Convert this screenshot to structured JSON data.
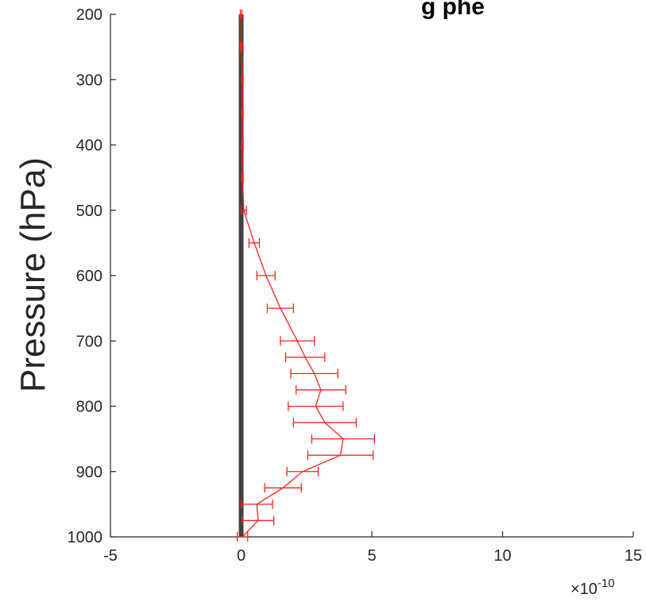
{
  "chart_data": {
    "type": "line",
    "title": "g      phe",
    "ylabel": "Pressure (hPa)",
    "xlabel": "",
    "x_multiplier_label": "×10",
    "x_multiplier_exponent": "-10",
    "xlim": [
      -5,
      15
    ],
    "ylim": [
      200,
      1000
    ],
    "y_reversed": true,
    "x_ticks": [
      -5,
      0,
      5,
      10,
      15
    ],
    "y_ticks": [
      200,
      300,
      400,
      500,
      600,
      700,
      800,
      900,
      1000
    ],
    "grid": false,
    "colors": {
      "zero_line": "#404040",
      "series": "#ff2020",
      "axis": "#262626"
    },
    "series": [
      {
        "style": "line-with-errorbars",
        "points": [
          {
            "p": 200,
            "x": 0.0,
            "err": 0.03
          },
          {
            "p": 250,
            "x": 0.0,
            "err": 0.03
          },
          {
            "p": 300,
            "x": 0.05,
            "err": 0.03
          },
          {
            "p": 350,
            "x": 0.05,
            "err": 0.03
          },
          {
            "p": 400,
            "x": 0.05,
            "err": 0.03
          },
          {
            "p": 450,
            "x": 0.05,
            "err": 0.03
          },
          {
            "p": 500,
            "x": 0.1,
            "err": 0.1
          },
          {
            "p": 550,
            "x": 0.5,
            "err": 0.2
          },
          {
            "p": 600,
            "x": 0.95,
            "err": 0.35
          },
          {
            "p": 650,
            "x": 1.5,
            "err": 0.5
          },
          {
            "p": 700,
            "x": 2.15,
            "err": 0.65
          },
          {
            "p": 725,
            "x": 2.45,
            "err": 0.75
          },
          {
            "p": 750,
            "x": 2.8,
            "err": 0.9
          },
          {
            "p": 775,
            "x": 3.05,
            "err": 0.95
          },
          {
            "p": 800,
            "x": 2.85,
            "err": 1.05
          },
          {
            "p": 825,
            "x": 3.2,
            "err": 1.2
          },
          {
            "p": 850,
            "x": 3.9,
            "err": 1.2
          },
          {
            "p": 875,
            "x": 3.8,
            "err": 1.25
          },
          {
            "p": 900,
            "x": 2.35,
            "err": 0.6
          },
          {
            "p": 925,
            "x": 1.6,
            "err": 0.7
          },
          {
            "p": 950,
            "x": 0.6,
            "err": 0.6
          },
          {
            "p": 975,
            "x": 0.65,
            "err": 0.6
          },
          {
            "p": 1000,
            "x": 0.05,
            "err": 0.2
          }
        ]
      }
    ]
  }
}
